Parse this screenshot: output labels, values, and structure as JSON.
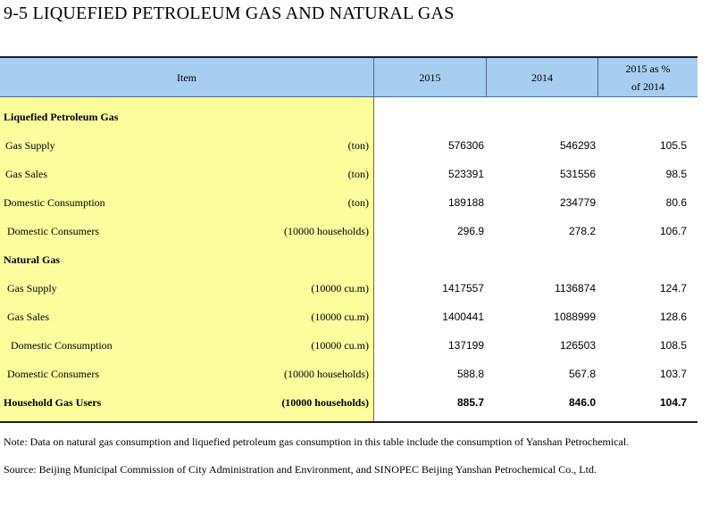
{
  "title": "9-5  LIQUEFIED PETROLEUM GAS AND NATURAL GAS",
  "header": {
    "item": "Item",
    "col1": "2015",
    "col2": "2014",
    "col3_line1": "2015 as %",
    "col3_line2": "of 2014"
  },
  "rows": [
    {
      "name": "Liquefied Petroleum Gas",
      "unit": "",
      "v2015": "",
      "v2014": "",
      "pct": ""
    },
    {
      "name": "Gas Supply",
      "unit": "(ton)",
      "v2015": "576306",
      "v2014": "546293",
      "pct": "105.5"
    },
    {
      "name": "Gas Sales",
      "unit": "(ton)",
      "v2015": "523391",
      "v2014": "531556",
      "pct": "98.5"
    },
    {
      "name": "Domestic Consumption",
      "unit": "(ton)",
      "v2015": "189188",
      "v2014": "234779",
      "pct": "80.6"
    },
    {
      "name": "Domestic Consumers",
      "unit": "(10000 households)",
      "v2015": "296.9",
      "v2014": "278.2",
      "pct": "106.7"
    },
    {
      "name": "Natural Gas",
      "unit": "",
      "v2015": "",
      "v2014": "",
      "pct": ""
    },
    {
      "name": "Gas Supply",
      "unit": "(10000 cu.m)",
      "v2015": "1417557",
      "v2014": "1136874",
      "pct": "124.7"
    },
    {
      "name": "Gas Sales",
      "unit": "(10000 cu.m)",
      "v2015": "1400441",
      "v2014": "1088999",
      "pct": "128.6"
    },
    {
      "name": "Domestic Consumption",
      "unit": "(10000 cu.m)",
      "v2015": "137199",
      "v2014": "126503",
      "pct": "108.5"
    },
    {
      "name": "Domestic Consumers",
      "unit": "(10000 households)",
      "v2015": "588.8",
      "v2014": "567.8",
      "pct": "103.7"
    },
    {
      "name": "Household Gas Users",
      "unit": "(10000 households)",
      "v2015": "885.7",
      "v2014": "846.0",
      "pct": "104.7"
    }
  ],
  "note": "Note: Data on natural gas consumption and liquefied petroleum gas consumption in this table include the consumption of Yanshan Petrochemical.",
  "source": "Source: Beijing Municipal Commission of City Administration and Environment, and SINOPEC Beijing Yanshan Petrochemical Co., Ltd.",
  "colors": {
    "header_bg": "#a7cdf0",
    "item_column_bg": "#fdfd9e"
  }
}
